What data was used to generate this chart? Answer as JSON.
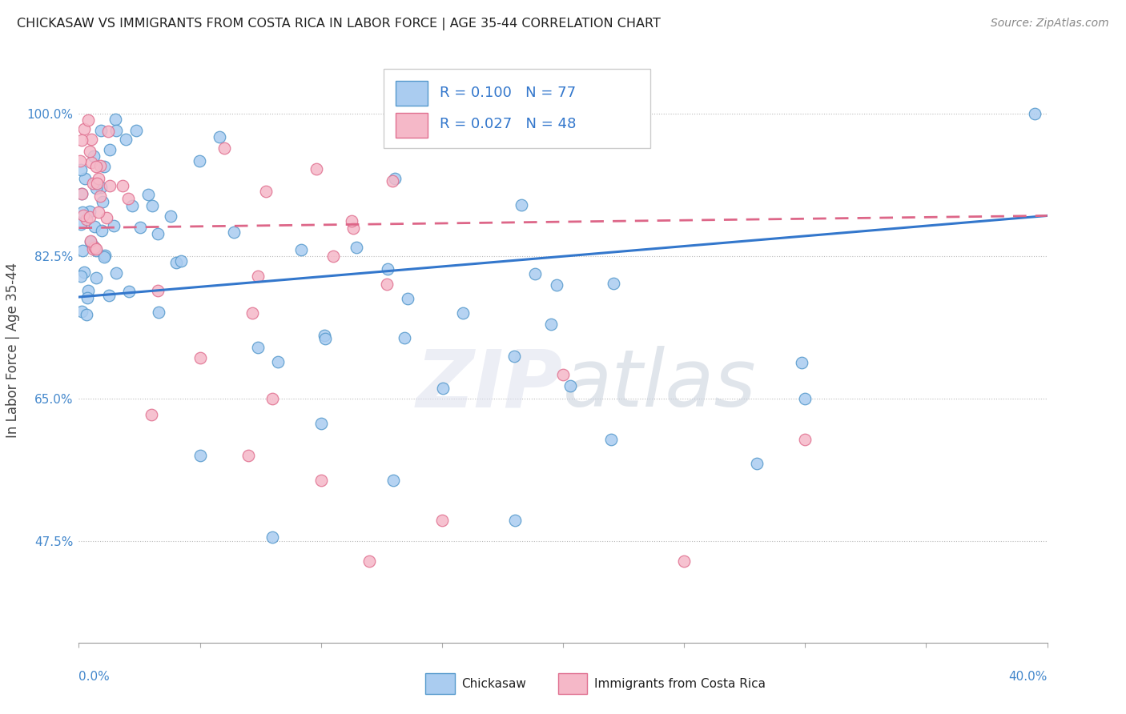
{
  "title": "CHICKASAW VS IMMIGRANTS FROM COSTA RICA IN LABOR FORCE | AGE 35-44 CORRELATION CHART",
  "source": "Source: ZipAtlas.com",
  "ylabel_label": "In Labor Force | Age 35-44",
  "xmin": 0.0,
  "xmax": 40.0,
  "ymin": 35.0,
  "ymax": 107.0,
  "ytick_vals": [
    47.5,
    65.0,
    82.5,
    100.0
  ],
  "blue_color": "#aaccf0",
  "blue_edge": "#5599cc",
  "pink_color": "#f5b8c8",
  "pink_edge": "#e07090",
  "blue_R": 0.1,
  "blue_N": 77,
  "pink_R": 0.027,
  "pink_N": 48,
  "legend_label_blue": "Chickasaw",
  "legend_label_pink": "Immigrants from Costa Rica",
  "trend_blue_color": "#3377cc",
  "trend_pink_color": "#dd6688",
  "watermark": "ZIPatlas",
  "watermark_zip_color": "#d0d0e8",
  "watermark_atlas_color": "#c0c8d8",
  "blue_trend_x0": 0.0,
  "blue_trend_y0": 77.5,
  "blue_trend_x1": 40.0,
  "blue_trend_y1": 87.5,
  "pink_trend_x0": 0.0,
  "pink_trend_y0": 86.0,
  "pink_trend_x1": 40.0,
  "pink_trend_y1": 87.5
}
